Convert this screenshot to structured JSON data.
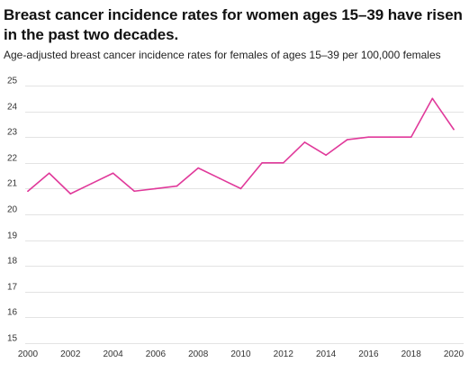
{
  "chart_data": {
    "type": "line",
    "title": "Breast cancer incidence rates for women ages 15–39 have risen in the past two decades.",
    "subtitle": "Age-adjusted breast cancer incidence rates for females of ages 15–39 per 100,000 females",
    "x": [
      2000,
      2001,
      2002,
      2003,
      2004,
      2005,
      2006,
      2007,
      2008,
      2009,
      2010,
      2011,
      2012,
      2013,
      2014,
      2015,
      2016,
      2017,
      2018,
      2019,
      2020
    ],
    "series": [
      {
        "values": [
          20.9,
          21.6,
          20.8,
          21.2,
          21.6,
          20.9,
          21.0,
          21.1,
          21.8,
          21.4,
          21.0,
          22.0,
          22.0,
          22.8,
          22.3,
          22.9,
          23.0,
          23.0,
          23.0,
          24.5,
          23.3
        ]
      }
    ],
    "xlim": [
      2000,
      2020
    ],
    "ylim": [
      15,
      25
    ],
    "x_ticks": [
      "2000",
      "2002",
      "2004",
      "2006",
      "2008",
      "2010",
      "2012",
      "2014",
      "2016",
      "2018",
      "2020"
    ],
    "y_ticks": [
      "15",
      "16",
      "17",
      "18",
      "19",
      "20",
      "21",
      "22",
      "23",
      "24",
      "25"
    ],
    "grid": "horizontal",
    "legend": "none"
  },
  "colors": {
    "line": "#e0399a",
    "grid": "#e3e3e3",
    "text": "#111111"
  }
}
